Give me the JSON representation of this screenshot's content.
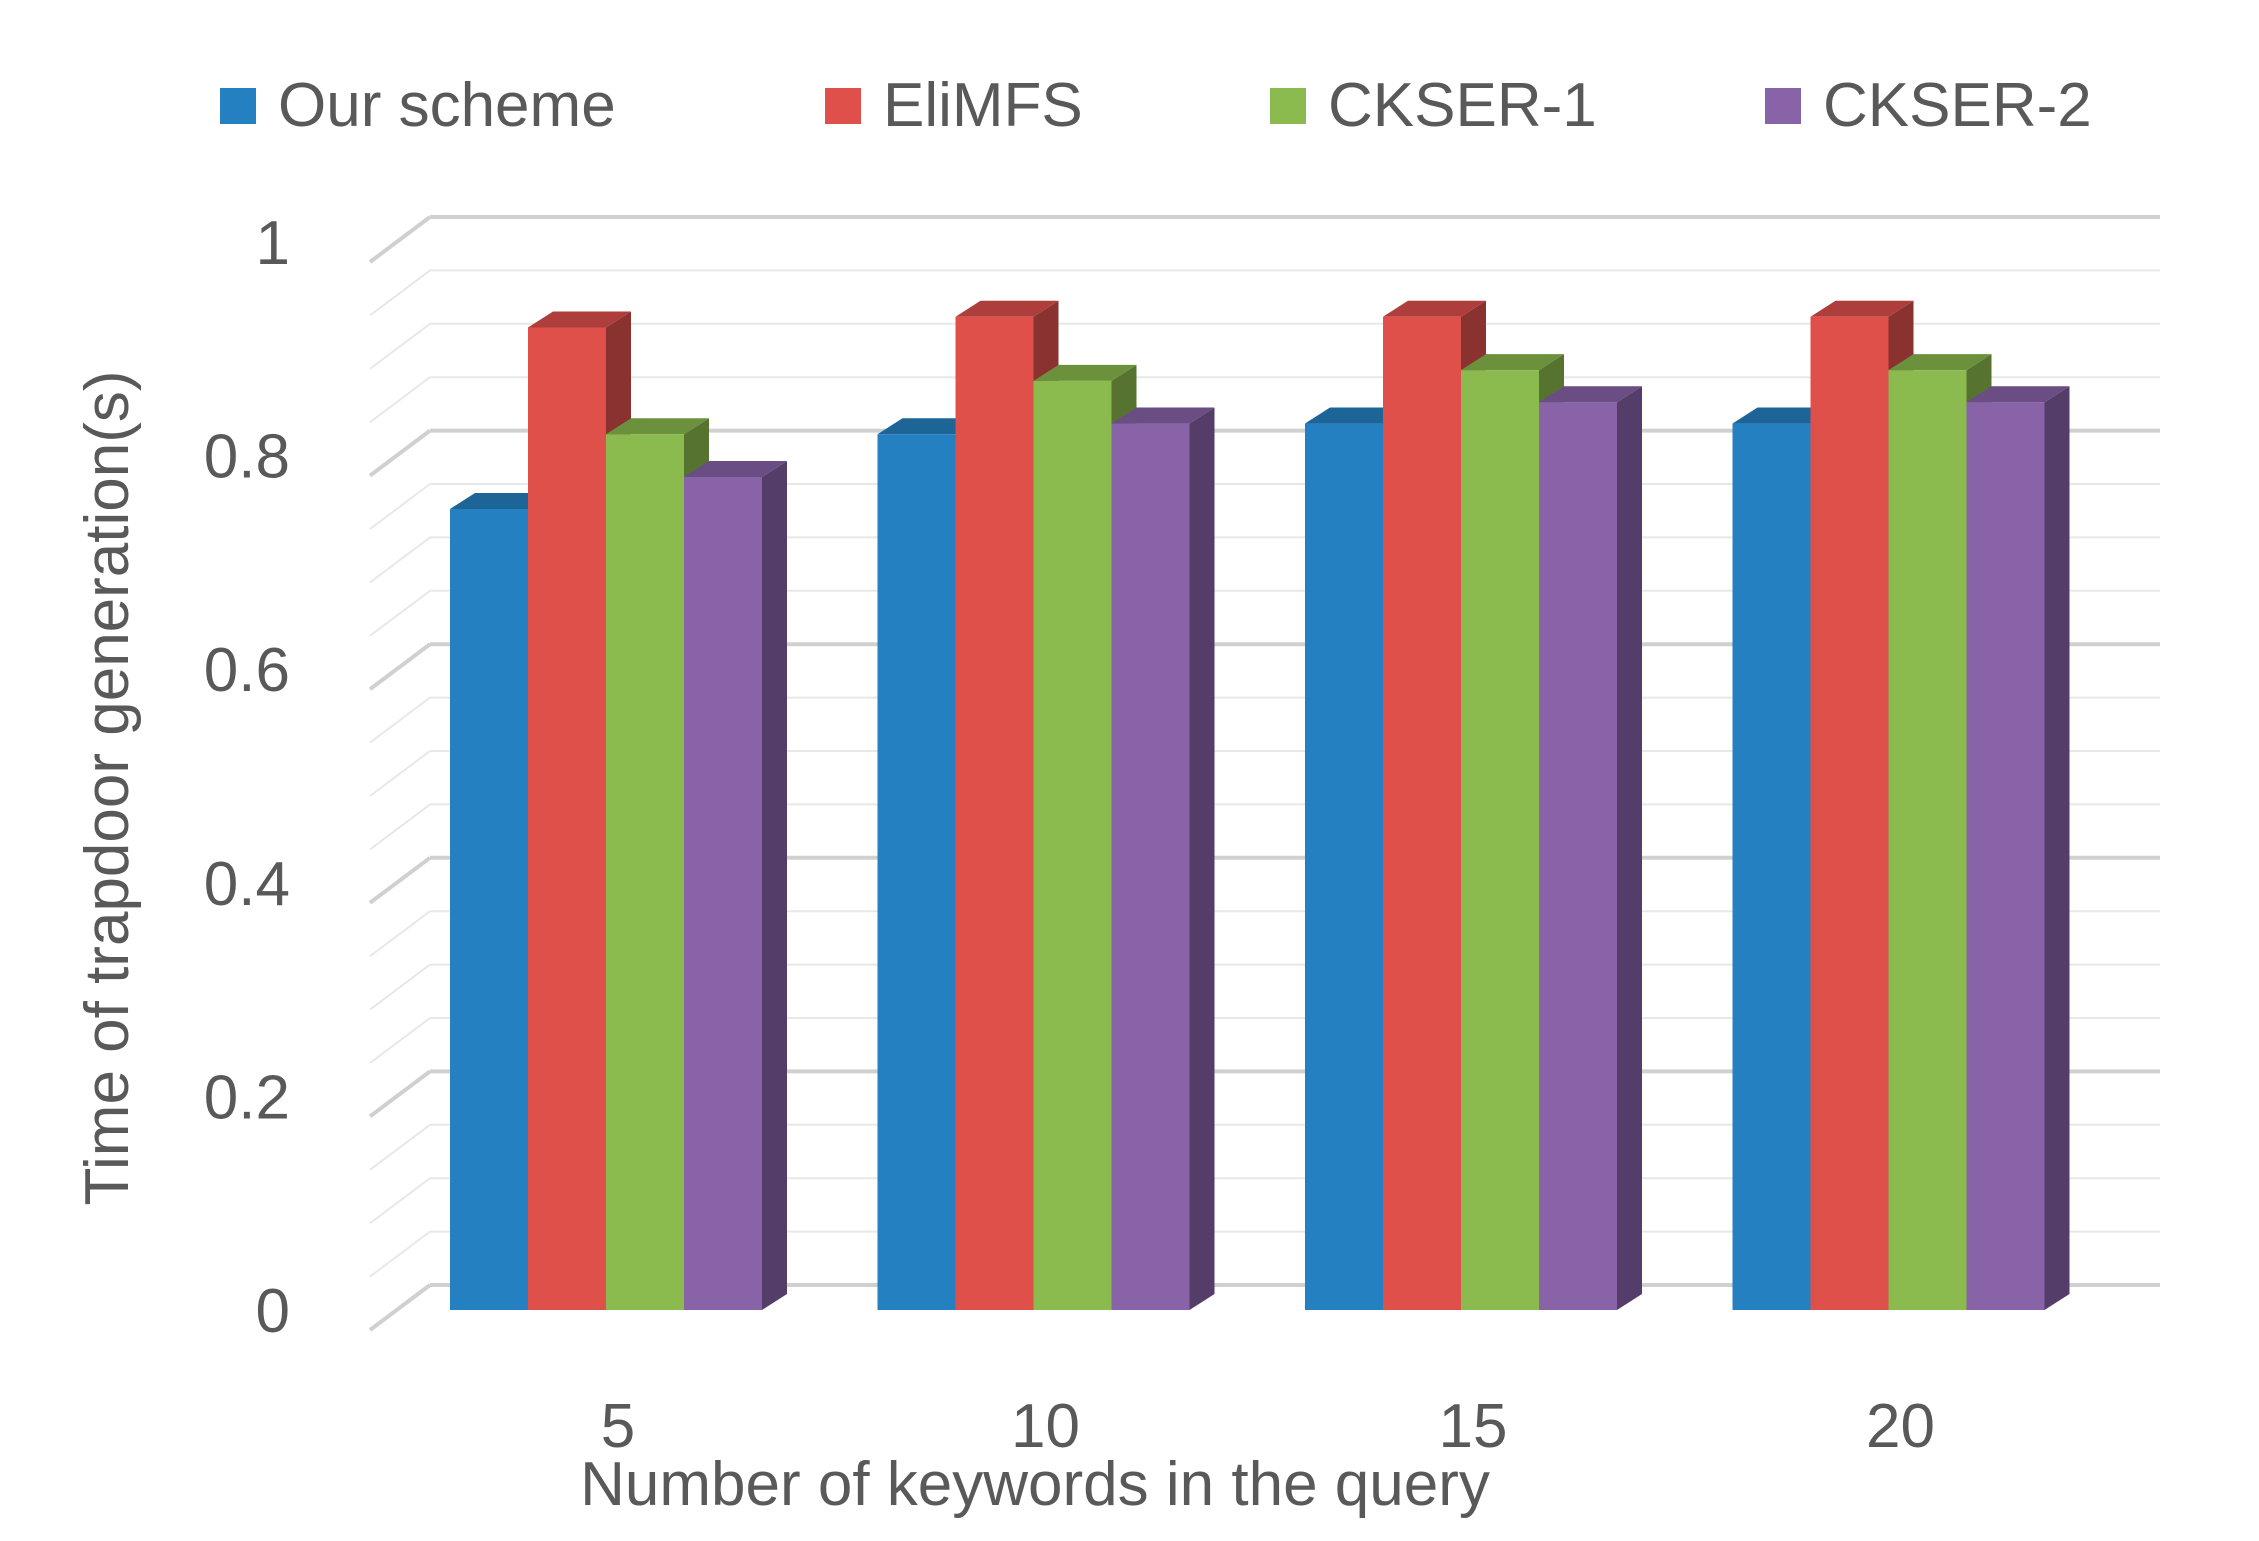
{
  "chart_data": {
    "type": "bar",
    "title": "",
    "xlabel": "Number of keywords in the query",
    "ylabel": "Time of trapdoor generation(s)",
    "categories": [
      "5",
      "10",
      "15",
      "20"
    ],
    "ylim": [
      0,
      1
    ],
    "yticks": [
      "0",
      "0.2",
      "0.4",
      "0.6",
      "0.8",
      "1"
    ],
    "grid": true,
    "legend": "top",
    "series": [
      {
        "name": "Our scheme",
        "values": [
          0.75,
          0.82,
          0.83,
          0.83
        ],
        "color": "#2580C2"
      },
      {
        "name": "EliMFS",
        "values": [
          0.92,
          0.93,
          0.93,
          0.93
        ],
        "color": "#DF504B"
      },
      {
        "name": "CKSER-1",
        "values": [
          0.82,
          0.87,
          0.88,
          0.88
        ],
        "color": "#8BBA4E"
      },
      {
        "name": "CKSER-2",
        "values": [
          0.78,
          0.83,
          0.85,
          0.85
        ],
        "color": "#8863A8"
      }
    ]
  }
}
